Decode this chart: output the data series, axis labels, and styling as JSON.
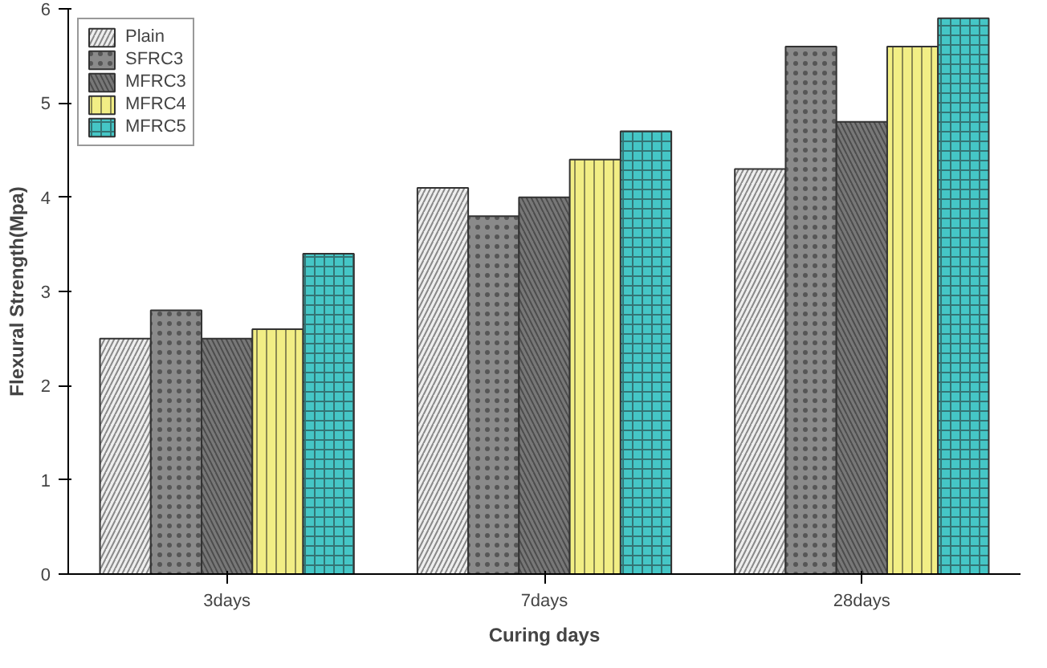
{
  "chart_data": {
    "type": "bar",
    "xlabel": "Curing days",
    "ylabel": "Flexural Strength(Mpa)",
    "categories": [
      "3days",
      "7days",
      "28days"
    ],
    "series": [
      {
        "name": "Plain",
        "color": "#eeeeee",
        "values": [
          2.5,
          4.1,
          4.3
        ]
      },
      {
        "name": "SFRC3",
        "color": "#8a8a8a",
        "values": [
          2.8,
          3.8,
          5.6
        ]
      },
      {
        "name": "MFRC3",
        "color": "#777777",
        "values": [
          2.5,
          4.0,
          4.8
        ]
      },
      {
        "name": "MFRC4",
        "color": "#f2ee85",
        "values": [
          2.6,
          4.4,
          5.6
        ]
      },
      {
        "name": "MFRC5",
        "color": "#45c6c6",
        "values": [
          3.4,
          4.7,
          5.9
        ]
      }
    ],
    "ylim": [
      0,
      6
    ],
    "yticks": [
      0,
      1,
      2,
      3,
      4,
      5,
      6
    ],
    "grid": false,
    "legend": "top left"
  }
}
